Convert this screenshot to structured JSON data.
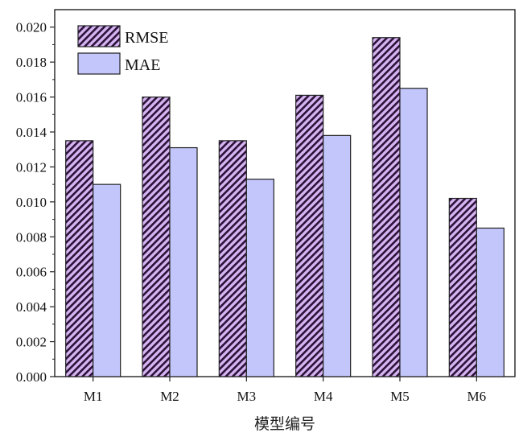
{
  "chart_data": {
    "type": "bar",
    "categories": [
      "M1",
      "M2",
      "M3",
      "M4",
      "M5",
      "M6"
    ],
    "series": [
      {
        "name": "RMSE",
        "values": [
          0.0135,
          0.016,
          0.0135,
          0.0161,
          0.0194,
          0.0102
        ],
        "fill": "#d6b4f2",
        "hatch": "#2a1238",
        "pattern": "diagonal-hatch"
      },
      {
        "name": "MAE",
        "values": [
          0.011,
          0.0131,
          0.0113,
          0.0138,
          0.0165,
          0.0085
        ],
        "fill": "#c3c6fb"
      }
    ],
    "title": "",
    "xlabel": "模型编号",
    "ylabel": "",
    "ylim": [
      0,
      0.021
    ],
    "yticks": [
      "0.000",
      "0.002",
      "0.004",
      "0.006",
      "0.008",
      "0.010",
      "0.012",
      "0.014",
      "0.016",
      "0.018",
      "0.020"
    ],
    "grid": false,
    "legend_position": "top-left"
  }
}
